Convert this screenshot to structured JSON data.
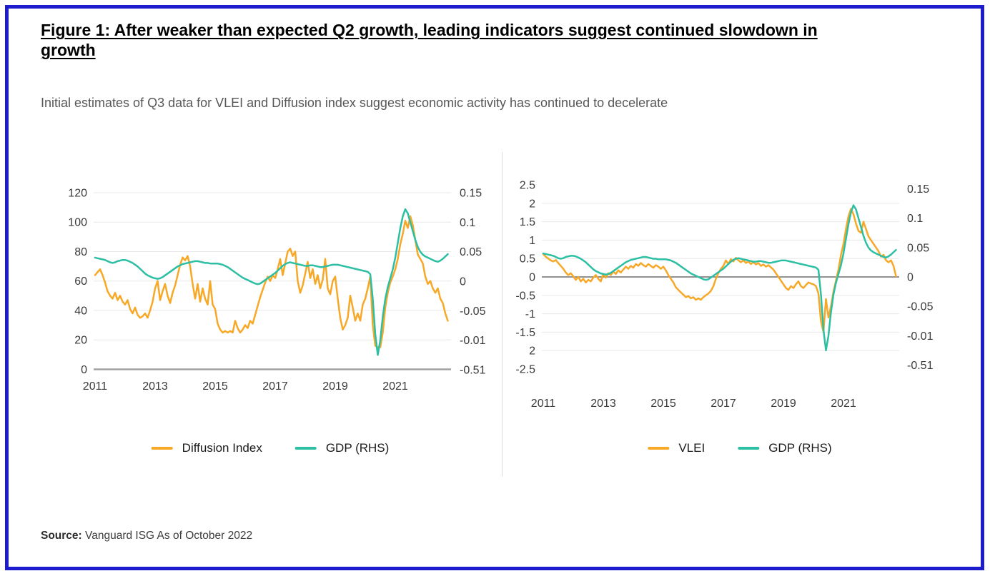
{
  "page": {
    "title": "Figure 1: After weaker than expected Q2 growth, leading indicators suggest continued slowdown in growth",
    "subtitle": "Initial estimates of Q3 data for VLEI and Diffusion index suggest economic activity has continued to decelerate",
    "source_label": "Source:",
    "source_text": "Vanguard ISG As of October 2022"
  },
  "colors": {
    "border_blue": "#1c1ccd",
    "accent_orange": "#F7A827",
    "accent_teal": "#2CBFA3",
    "gridline": "#e8e8e8",
    "axis_text": "#3a3a3a"
  },
  "chart_data": [
    {
      "type": "line",
      "x_axis": {
        "tick_labels": [
          "2011",
          "2013",
          "2015",
          "2017",
          "2019",
          "2021"
        ],
        "tick_values": [
          2011,
          2013,
          2015,
          2017,
          2019,
          2021
        ],
        "range": [
          2011,
          2022.9
        ]
      },
      "left_axis": {
        "tick_labels": [
          "120",
          "100",
          "80",
          "60",
          "40",
          "20",
          "0"
        ],
        "range": [
          120,
          0
        ]
      },
      "right_axis": {
        "tick_labels": [
          "0.15",
          "0.1",
          "0.05",
          "0",
          "-0.05",
          "-0.01",
          "-0.51"
        ],
        "range": [
          0.15,
          -0.15
        ]
      },
      "legend_position": "bottom",
      "grid": true,
      "series": [
        {
          "name": "Diffusion Index",
          "axis": "left",
          "color": "#F7A827",
          "x_start": 2011,
          "x_step": 0.0833333,
          "values": [
            64,
            66,
            68,
            64,
            59,
            53,
            50,
            48,
            52,
            47,
            50,
            46,
            44,
            47,
            41,
            38,
            42,
            37,
            35,
            36,
            38,
            35,
            40,
            46,
            55,
            60,
            47,
            53,
            58,
            50,
            45,
            52,
            57,
            64,
            71,
            76,
            74,
            77,
            70,
            58,
            48,
            58,
            46,
            55,
            48,
            44,
            60,
            44,
            41,
            31,
            27,
            25,
            26,
            25,
            26,
            25,
            33,
            28,
            25,
            27,
            30,
            28,
            33,
            31,
            37,
            43,
            49,
            54,
            59,
            63,
            60,
            64,
            62,
            68,
            75,
            64,
            72,
            80,
            82,
            77,
            80,
            60,
            52,
            57,
            65,
            73,
            62,
            68,
            58,
            64,
            55,
            61,
            75,
            55,
            51,
            60,
            63,
            48,
            35,
            27,
            30,
            35,
            50,
            42,
            33,
            38,
            33,
            44,
            48,
            55,
            63,
            30,
            16,
            15,
            15,
            25,
            42,
            52,
            59,
            63,
            68,
            75,
            85,
            92,
            101,
            96,
            104,
            98,
            88,
            78,
            75,
            72,
            63,
            58,
            60,
            55,
            52,
            55,
            48,
            45,
            38,
            33
          ]
        },
        {
          "name": "GDP (RHS)",
          "axis": "right",
          "color": "#2CBFA3",
          "x_start": 2011,
          "x_step": 0.0833333,
          "values": [
            0.04,
            0.039,
            0.038,
            0.037,
            0.036,
            0.034,
            0.032,
            0.031,
            0.032,
            0.034,
            0.035,
            0.036,
            0.036,
            0.035,
            0.033,
            0.031,
            0.028,
            0.025,
            0.021,
            0.017,
            0.013,
            0.01,
            0.008,
            0.006,
            0.005,
            0.004,
            0.005,
            0.007,
            0.01,
            0.013,
            0.016,
            0.019,
            0.022,
            0.025,
            0.027,
            0.029,
            0.03,
            0.031,
            0.032,
            0.033,
            0.034,
            0.034,
            0.033,
            0.032,
            0.031,
            0.031,
            0.03,
            0.03,
            0.03,
            0.03,
            0.029,
            0.028,
            0.026,
            0.024,
            0.021,
            0.018,
            0.015,
            0.012,
            0.009,
            0.006,
            0.004,
            0.002,
            0.0,
            -0.002,
            -0.004,
            -0.005,
            -0.004,
            -0.001,
            0.002,
            0.005,
            0.008,
            0.011,
            0.014,
            0.018,
            0.022,
            0.026,
            0.029,
            0.031,
            0.032,
            0.031,
            0.03,
            0.029,
            0.028,
            0.027,
            0.026,
            0.026,
            0.027,
            0.027,
            0.026,
            0.025,
            0.024,
            0.024,
            0.025,
            0.026,
            0.027,
            0.028,
            0.028,
            0.028,
            0.027,
            0.026,
            0.025,
            0.024,
            0.023,
            0.022,
            0.021,
            0.02,
            0.019,
            0.018,
            0.017,
            0.016,
            0.012,
            -0.03,
            -0.09,
            -0.125,
            -0.1,
            -0.06,
            -0.03,
            -0.01,
            0.005,
            0.02,
            0.04,
            0.065,
            0.09,
            0.11,
            0.122,
            0.115,
            0.1,
            0.085,
            0.07,
            0.058,
            0.05,
            0.045,
            0.042,
            0.04,
            0.038,
            0.036,
            0.034,
            0.033,
            0.035,
            0.038,
            0.042,
            0.046
          ]
        }
      ]
    },
    {
      "type": "line",
      "x_axis": {
        "tick_labels": [
          "2011",
          "2013",
          "2015",
          "2017",
          "2019",
          "2021"
        ],
        "tick_values": [
          2011,
          2013,
          2015,
          2017,
          2019,
          2021
        ],
        "range": [
          2011,
          2022.9
        ]
      },
      "left_axis": {
        "tick_labels": [
          "2.5",
          "2",
          "1.5",
          "1",
          "0.5",
          "0",
          "-0.5",
          "-1",
          "-1.5",
          "2",
          "-2.5"
        ],
        "range": [
          2.5,
          -2.5
        ]
      },
      "right_axis": {
        "tick_labels": [
          "0.15",
          "0.1",
          "0.05",
          "0",
          "-0.05",
          "-0.01",
          "-0.51"
        ],
        "range": [
          0.15,
          -0.15
        ]
      },
      "legend_position": "bottom",
      "grid": true,
      "series": [
        {
          "name": "VLEI",
          "axis": "left",
          "color": "#F7A827",
          "x_start": 2011,
          "x_step": 0.0833333,
          "values": [
            0.62,
            0.55,
            0.5,
            0.45,
            0.42,
            0.46,
            0.38,
            0.3,
            0.22,
            0.12,
            0.05,
            0.1,
            0.02,
            -0.08,
            0.0,
            -0.12,
            -0.05,
            -0.15,
            -0.08,
            -0.12,
            -0.02,
            0.05,
            -0.05,
            -0.12,
            0.08,
            -0.02,
            0.1,
            0.05,
            0.15,
            0.08,
            0.18,
            0.12,
            0.2,
            0.28,
            0.22,
            0.3,
            0.25,
            0.35,
            0.3,
            0.38,
            0.32,
            0.28,
            0.35,
            0.3,
            0.25,
            0.32,
            0.28,
            0.22,
            0.28,
            0.18,
            0.05,
            -0.05,
            -0.15,
            -0.28,
            -0.35,
            -0.42,
            -0.48,
            -0.55,
            -0.52,
            -0.58,
            -0.55,
            -0.62,
            -0.58,
            -0.62,
            -0.55,
            -0.5,
            -0.45,
            -0.38,
            -0.25,
            -0.05,
            0.1,
            0.22,
            0.3,
            0.45,
            0.35,
            0.48,
            0.42,
            0.52,
            0.45,
            0.4,
            0.45,
            0.38,
            0.42,
            0.35,
            0.4,
            0.34,
            0.38,
            0.3,
            0.34,
            0.28,
            0.32,
            0.26,
            0.2,
            0.1,
            0.0,
            -0.1,
            -0.2,
            -0.3,
            -0.35,
            -0.25,
            -0.3,
            -0.2,
            -0.12,
            -0.25,
            -0.3,
            -0.22,
            -0.15,
            -0.18,
            -0.2,
            -0.25,
            -0.45,
            -1.2,
            -1.5,
            -0.6,
            -1.1,
            -0.8,
            -0.4,
            -0.1,
            0.2,
            0.6,
            0.9,
            1.3,
            1.65,
            1.85,
            1.7,
            1.45,
            1.25,
            1.2,
            1.5,
            1.3,
            1.1,
            1.0,
            0.9,
            0.8,
            0.7,
            0.55,
            0.6,
            0.45,
            0.4,
            0.45,
            0.3,
            0.02
          ]
        },
        {
          "name": "GDP (RHS)",
          "axis": "right",
          "color": "#2CBFA3",
          "x_start": 2011,
          "x_step": 0.0833333,
          "values": [
            0.04,
            0.039,
            0.038,
            0.037,
            0.036,
            0.034,
            0.032,
            0.031,
            0.032,
            0.034,
            0.035,
            0.036,
            0.036,
            0.035,
            0.033,
            0.031,
            0.028,
            0.025,
            0.021,
            0.017,
            0.013,
            0.01,
            0.008,
            0.006,
            0.005,
            0.004,
            0.005,
            0.007,
            0.01,
            0.013,
            0.016,
            0.019,
            0.022,
            0.025,
            0.027,
            0.029,
            0.03,
            0.031,
            0.032,
            0.033,
            0.034,
            0.034,
            0.033,
            0.032,
            0.031,
            0.031,
            0.03,
            0.03,
            0.03,
            0.03,
            0.029,
            0.028,
            0.026,
            0.024,
            0.021,
            0.018,
            0.015,
            0.012,
            0.009,
            0.006,
            0.004,
            0.002,
            0.0,
            -0.002,
            -0.004,
            -0.005,
            -0.004,
            -0.001,
            0.002,
            0.005,
            0.008,
            0.011,
            0.014,
            0.018,
            0.022,
            0.026,
            0.029,
            0.031,
            0.032,
            0.031,
            0.03,
            0.029,
            0.028,
            0.027,
            0.026,
            0.026,
            0.027,
            0.027,
            0.026,
            0.025,
            0.024,
            0.024,
            0.025,
            0.026,
            0.027,
            0.028,
            0.028,
            0.028,
            0.027,
            0.026,
            0.025,
            0.024,
            0.023,
            0.022,
            0.021,
            0.02,
            0.019,
            0.018,
            0.017,
            0.016,
            0.012,
            -0.03,
            -0.09,
            -0.125,
            -0.1,
            -0.06,
            -0.03,
            -0.01,
            0.005,
            0.02,
            0.04,
            0.065,
            0.09,
            0.11,
            0.122,
            0.115,
            0.1,
            0.085,
            0.07,
            0.058,
            0.05,
            0.045,
            0.042,
            0.04,
            0.038,
            0.036,
            0.034,
            0.033,
            0.035,
            0.038,
            0.042,
            0.046
          ]
        }
      ]
    }
  ]
}
